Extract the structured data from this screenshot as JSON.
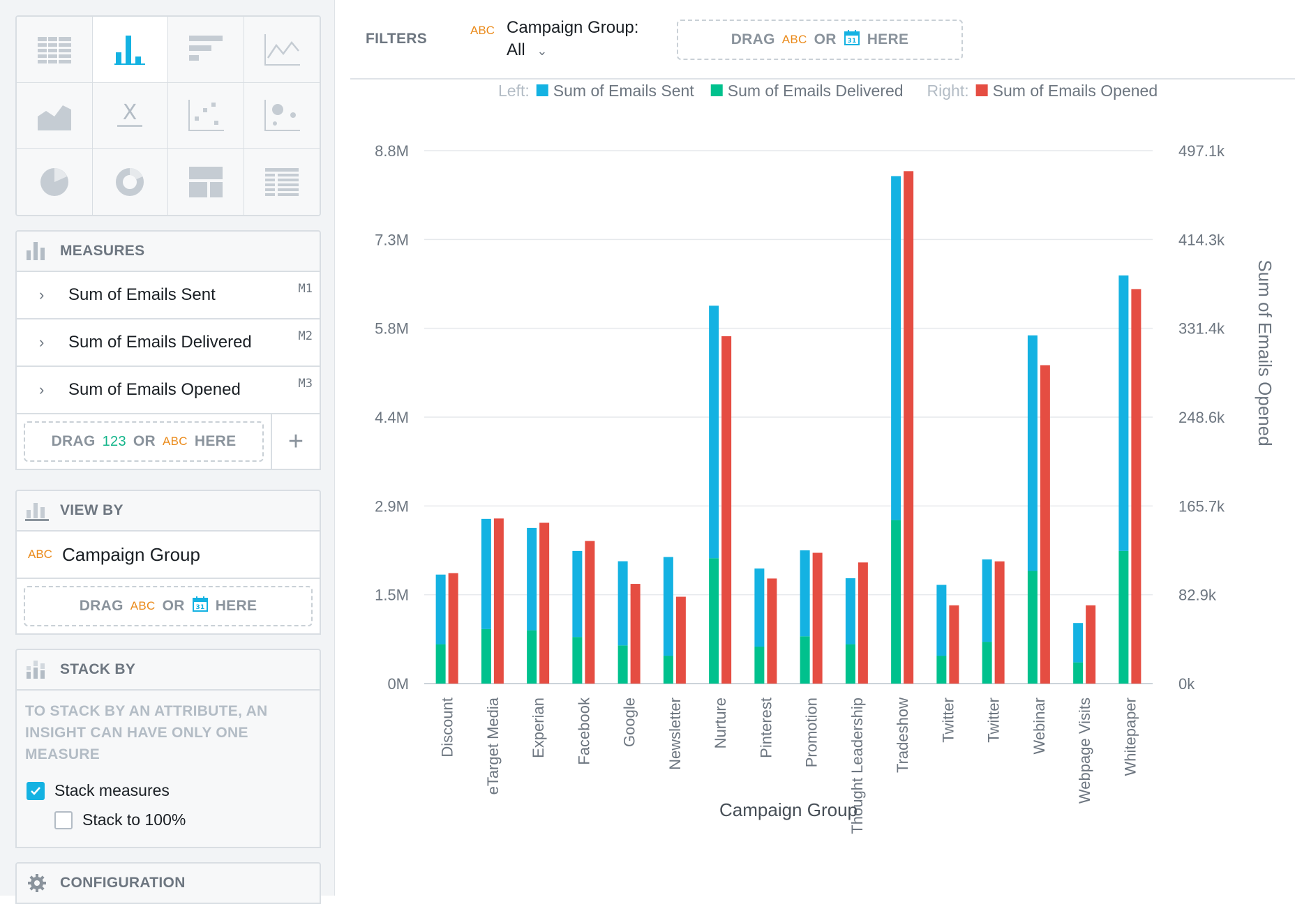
{
  "filters": {
    "label": "FILTERS",
    "attr_type": "ABC",
    "name": "Campaign Group:",
    "value": "All",
    "drop_drag": "DRAG",
    "drop_abc": "ABC",
    "drop_or": "OR",
    "drop_here": "HERE"
  },
  "measures": {
    "title": "MEASURES",
    "items": [
      {
        "label": "Sum of Emails Sent",
        "tag": "M1"
      },
      {
        "label": "Sum of Emails Delivered",
        "tag": "M2"
      },
      {
        "label": "Sum of Emails Opened",
        "tag": "M3"
      }
    ],
    "drop_drag": "DRAG",
    "drop_num": "123",
    "drop_or": "OR",
    "drop_abc": "ABC",
    "drop_here": "HERE",
    "add": "+"
  },
  "viewby": {
    "title": "VIEW BY",
    "attr_type": "ABC",
    "item": "Campaign Group",
    "drop_drag": "DRAG",
    "drop_abc": "ABC",
    "drop_or": "OR",
    "drop_here": "HERE"
  },
  "stackby": {
    "title": "STACK BY",
    "note": [
      "TO STACK BY AN ATTRIBUTE, AN",
      "INSIGHT CAN HAVE ONLY ONE",
      "MEASURE"
    ],
    "stack_measures": "Stack measures",
    "stack_measures_checked": true,
    "stack_100": "Stack to 100%",
    "stack_100_checked": false
  },
  "configuration": {
    "title": "CONFIGURATION"
  },
  "colors": {
    "sent": "#14b2e2",
    "delivered": "#00c18d",
    "opened": "#e54d42",
    "accent": "#14b2e2",
    "orange": "#ea8a1a"
  },
  "chart_data": {
    "type": "bar",
    "legend": {
      "left_label": "Left:",
      "right_label": "Right:",
      "placement": "top-right"
    },
    "xlabel": "Campaign Group",
    "ylabel_right": "Sum of Emails Opened",
    "yticks_left": [
      "0M",
      "1.5M",
      "2.9M",
      "4.4M",
      "5.8M",
      "7.3M",
      "8.8M"
    ],
    "yticks_right": [
      "0k",
      "82.9k",
      "165.7k",
      "248.6k",
      "331.4k",
      "414.3k",
      "497.1k"
    ],
    "ylim_left": [
      0,
      8.8
    ],
    "ylim_right": [
      0,
      497.1
    ],
    "categories": [
      "Discount",
      "eTarget Media",
      "Experian",
      "Facebook",
      "Google",
      "Newsletter",
      "Nurture",
      "Pinterest",
      "Promotion",
      "Thought Leadership",
      "Tradeshow",
      "Twitter",
      "Twitter",
      "Webinar",
      "Webpage Visits",
      "Whitepaper"
    ],
    "series": [
      {
        "name": "Sum of Emails Sent",
        "axis": "left",
        "stacked": true,
        "values": [
          1.15,
          1.82,
          1.69,
          1.42,
          1.39,
          1.63,
          4.17,
          1.29,
          1.42,
          1.09,
          5.68,
          1.17,
          1.36,
          3.89,
          0.65,
          4.55
        ]
      },
      {
        "name": "Sum of Emails Delivered",
        "axis": "left",
        "stacked": true,
        "values": [
          0.65,
          0.9,
          0.88,
          0.77,
          0.63,
          0.46,
          2.07,
          0.61,
          0.78,
          0.65,
          2.7,
          0.46,
          0.69,
          1.86,
          0.35,
          2.19
        ]
      },
      {
        "name": "Sum of Emails Opened",
        "axis": "right",
        "stacked": false,
        "values": [
          103,
          154,
          150,
          133,
          93,
          81,
          324,
          98,
          122,
          113,
          478,
          73,
          114,
          297,
          73,
          368
        ]
      }
    ]
  }
}
